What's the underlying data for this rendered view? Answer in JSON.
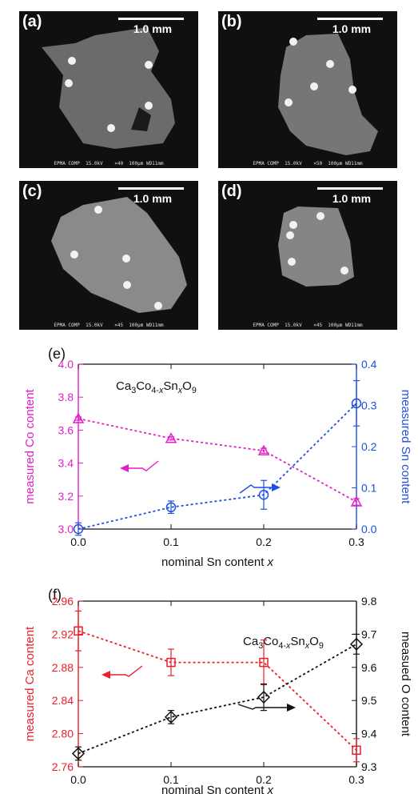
{
  "micrographs": [
    {
      "label": "(a)",
      "scale": "1.0 mm",
      "footer": "EPMA COMP  15.0kV    ×40  100μm WD11mm"
    },
    {
      "label": "(b)",
      "scale": "1.0 mm",
      "footer": "EPMA COMP  15.0kV    ×50  100μm WD11mm"
    },
    {
      "label": "(c)",
      "scale": "1.0 mm",
      "footer": "EPMA COMP  15.0kV    ×45  100μm WD11mm"
    },
    {
      "label": "(d)",
      "scale": "1.0 mm",
      "footer": "EPMA COMP  15.0kV    ×45  100μm WD11mm"
    }
  ],
  "colors": {
    "co": "#e020c8",
    "sn": "#1f4fe0",
    "ca": "#e8202a",
    "o": "#111111"
  },
  "chart_data": [
    {
      "type": "line",
      "panel_label": "(e)",
      "formula": {
        "base": "Ca",
        "sub1": "3",
        "mid": "Co",
        "sub2": "4-",
        "subx": "x",
        "mid2": "Sn",
        "subx2": "x",
        "end": "O",
        "sub3": "9"
      },
      "xlabel": "nominal Sn content ",
      "xlabel_var": "x",
      "x": [
        0.0,
        0.1,
        0.2,
        0.3
      ],
      "xticks": [
        "0.0",
        "0.1",
        "0.2",
        "0.3"
      ],
      "xlim": [
        0,
        0.3
      ],
      "left_axis": {
        "label": "measured Co content",
        "ylim": [
          3.0,
          4.0
        ],
        "ticks": [
          "3.0",
          "3.2",
          "3.4",
          "3.6",
          "3.8",
          "4.0"
        ]
      },
      "right_axis": {
        "label": "measured Sn content",
        "ylim": [
          0.0,
          0.4
        ],
        "ticks": [
          "0.0",
          "0.1",
          "0.2",
          "0.3",
          "0.4"
        ]
      },
      "series": [
        {
          "axis": "left",
          "marker": "triangle",
          "values": [
            3.67,
            3.55,
            3.475,
            3.165
          ],
          "errors": [
            0.01,
            0.01,
            0.015,
            0.02
          ]
        },
        {
          "axis": "right",
          "marker": "circle",
          "values": [
            0.0,
            0.053,
            0.083,
            0.305
          ],
          "errors": [
            0.015,
            0.015,
            0.035,
            0.055
          ]
        }
      ]
    },
    {
      "type": "line",
      "panel_label": "(f)",
      "formula": {
        "base": "Ca",
        "sub1": "3",
        "mid": "Co",
        "sub2": "4-",
        "subx": "x",
        "mid2": "Sn",
        "subx2": "x",
        "end": "O",
        "sub3": "9"
      },
      "xlabel": "nominal Sn content ",
      "xlabel_var": "x",
      "x": [
        0.0,
        0.1,
        0.2,
        0.3
      ],
      "xticks": [
        "0.0",
        "0.1",
        "0.2",
        "0.3"
      ],
      "xlim": [
        0,
        0.3
      ],
      "left_axis": {
        "label": "measured Ca content",
        "ylim": [
          2.76,
          2.96
        ],
        "ticks": [
          "2.76",
          "2.80",
          "2.84",
          "2.88",
          "2.92",
          "2.96"
        ]
      },
      "right_axis": {
        "label": "measued O content",
        "ylim": [
          9.3,
          9.8
        ],
        "ticks": [
          "9.3",
          "9.4",
          "9.5",
          "9.6",
          "9.7",
          "9.8"
        ]
      },
      "series": [
        {
          "axis": "left",
          "marker": "square",
          "values": [
            2.924,
            2.886,
            2.886,
            2.78
          ],
          "errors": [
            0.024,
            0.016,
            0.027,
            0.014
          ]
        },
        {
          "axis": "right",
          "marker": "diamond",
          "values": [
            9.34,
            9.45,
            9.51,
            9.67
          ],
          "errors": [
            0.02,
            0.02,
            0.04,
            0.03
          ]
        }
      ]
    }
  ]
}
